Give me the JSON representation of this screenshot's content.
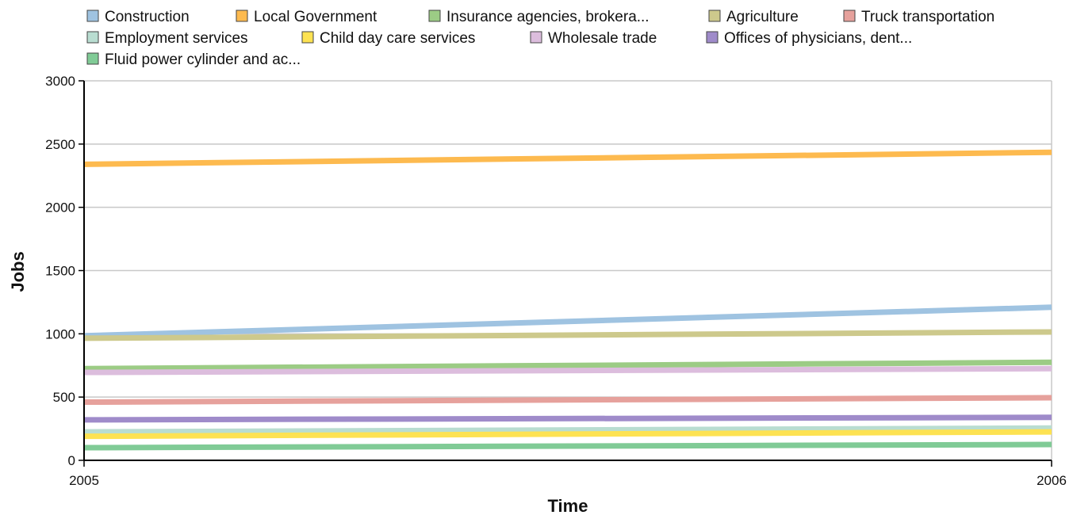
{
  "chart_data": {
    "type": "line",
    "xlabel": "Time",
    "ylabel": "Jobs",
    "x": [
      2005,
      2006
    ],
    "x_tick_labels": [
      "2005",
      "2006"
    ],
    "ylim": [
      0,
      3000
    ],
    "y_ticks": [
      0,
      500,
      1000,
      1500,
      2000,
      2500,
      3000
    ],
    "grid": true,
    "legend_position": "top",
    "series": [
      {
        "name": "Construction",
        "color": "#9fc3e1",
        "values": [
          985,
          1210
        ]
      },
      {
        "name": "Local Government",
        "color": "#fdba4f",
        "values": [
          2340,
          2435
        ]
      },
      {
        "name": "Insurance agencies, brokera...",
        "color": "#9ccc85",
        "values": [
          725,
          775
        ]
      },
      {
        "name": "Agriculture",
        "color": "#cdc98c",
        "values": [
          965,
          1015
        ]
      },
      {
        "name": "Truck transportation",
        "color": "#e6a19c",
        "values": [
          460,
          495
        ]
      },
      {
        "name": "Employment services",
        "color": "#b9ddd1",
        "values": [
          225,
          255
        ]
      },
      {
        "name": "Child day care services",
        "color": "#fde252",
        "values": [
          190,
          225
        ]
      },
      {
        "name": "Wholesale trade",
        "color": "#dcbddd",
        "values": [
          695,
          725
        ]
      },
      {
        "name": "Offices of physicians, dent...",
        "color": "#9f8bca",
        "values": [
          320,
          340
        ]
      },
      {
        "name": "Fluid power cylinder and ac...",
        "color": "#80cb96",
        "values": [
          100,
          125
        ]
      }
    ]
  }
}
